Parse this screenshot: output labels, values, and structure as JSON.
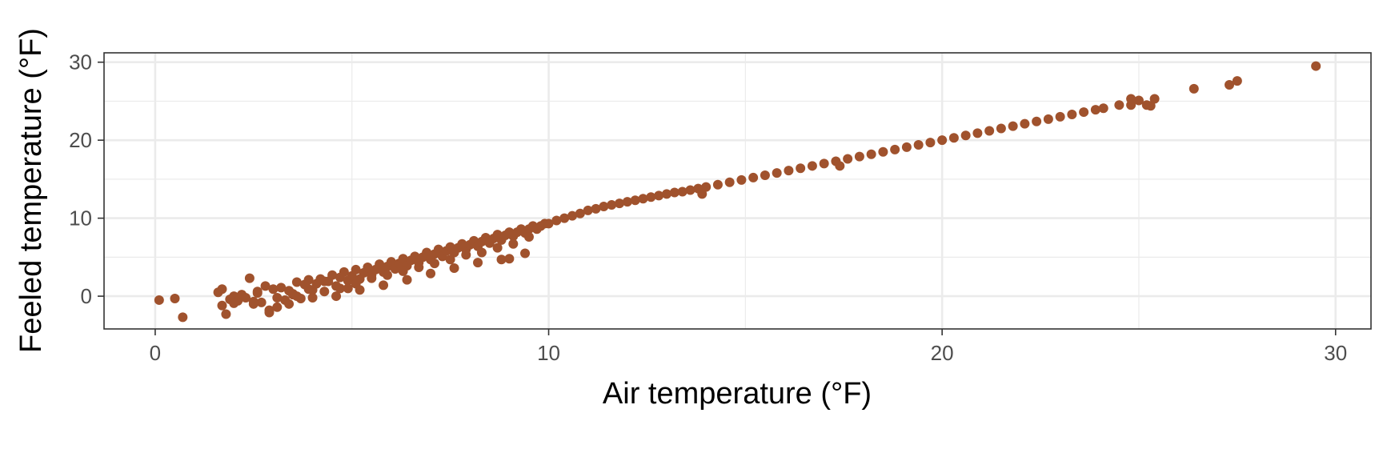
{
  "chart_data": {
    "type": "scatter",
    "title": "",
    "xlabel": "Air temperature (°F)",
    "ylabel": "Feeled temperature (°F)",
    "xlim": [
      -1.3,
      30.9
    ],
    "ylim": [
      -4.2,
      31.2
    ],
    "x_ticks": [
      0,
      10,
      20,
      30
    ],
    "y_ticks": [
      0,
      10,
      20,
      30
    ],
    "x_tick_labels": [
      "0",
      "10",
      "20",
      "30"
    ],
    "y_tick_labels": [
      "0",
      "10",
      "20",
      "30"
    ],
    "grid": true,
    "legend": "none",
    "point_color": "#A0522D",
    "series": [
      {
        "x": [
          0.1,
          0.5,
          0.7,
          1.6,
          1.7,
          1.8,
          1.9,
          2.0,
          2.1,
          2.2,
          2.4,
          2.5,
          2.6,
          2.7,
          2.8,
          2.9,
          3.0,
          3.1,
          3.2,
          3.3,
          3.4,
          3.5,
          3.6,
          3.7,
          3.8,
          3.9,
          4.0,
          4.1,
          4.2,
          4.3,
          4.4,
          4.5,
          4.6,
          4.7,
          4.8,
          4.9,
          5.0,
          5.1,
          5.2,
          5.3,
          5.4,
          5.5,
          5.6,
          5.7,
          5.8,
          5.9,
          6.0,
          6.1,
          6.2,
          6.3,
          6.4,
          6.5,
          6.6,
          6.7,
          6.8,
          6.9,
          7.0,
          7.1,
          7.2,
          7.3,
          7.4,
          7.5,
          7.6,
          7.7,
          7.8,
          7.9,
          8.0,
          8.1,
          8.2,
          8.3,
          8.4,
          8.5,
          8.6,
          8.7,
          8.8,
          8.9,
          9.0,
          9.1,
          9.2,
          9.3,
          9.4,
          9.5,
          9.6,
          9.7,
          9.8,
          9.9,
          10.0,
          10.2,
          10.4,
          10.6,
          10.8,
          11.0,
          11.2,
          11.4,
          11.6,
          11.8,
          12.0,
          12.2,
          12.4,
          12.6,
          12.8,
          13.0,
          13.2,
          13.4,
          13.6,
          13.8,
          14.0,
          14.3,
          14.6,
          14.9,
          15.2,
          15.5,
          15.8,
          16.1,
          16.4,
          16.7,
          17.0,
          17.3,
          17.6,
          17.9,
          18.2,
          18.5,
          18.8,
          19.1,
          19.4,
          19.7,
          20.0,
          20.3,
          20.6,
          20.9,
          21.2,
          21.5,
          21.8,
          22.1,
          22.4,
          22.7,
          23.0,
          23.3,
          23.6,
          23.9,
          24.1,
          24.5,
          24.8,
          25.0,
          25.2,
          25.4,
          26.4,
          27.3,
          27.5,
          29.5,
          2.0,
          2.3,
          2.6,
          3.1,
          3.5,
          3.9,
          4.3,
          4.7,
          5.1,
          5.5,
          5.9,
          6.3,
          6.7,
          7.1,
          7.5,
          7.9,
          8.3,
          8.7,
          9.1,
          9.5,
          2.9,
          3.4,
          4.0,
          4.6,
          5.2,
          5.8,
          6.4,
          7.0,
          7.6,
          8.2,
          8.8,
          9.4,
          13.9,
          17.4,
          24.8,
          25.3,
          9.0,
          1.7,
          3.6,
          2.5,
          4.9
        ],
        "y": [
          -0.5,
          -0.3,
          -2.7,
          0.5,
          -1.2,
          -2.3,
          -0.4,
          0.0,
          -0.6,
          0.2,
          2.3,
          -1.0,
          0.4,
          -0.8,
          1.3,
          -1.8,
          0.9,
          -0.2,
          1.1,
          -0.5,
          0.7,
          0.2,
          1.8,
          -0.3,
          1.5,
          2.1,
          0.8,
          1.6,
          2.2,
          0.6,
          1.9,
          2.7,
          1.3,
          2.4,
          3.1,
          2.0,
          2.6,
          3.4,
          2.2,
          3.0,
          3.7,
          2.7,
          3.4,
          4.1,
          3.1,
          3.8,
          4.4,
          3.5,
          4.2,
          4.8,
          3.9,
          4.6,
          5.1,
          4.3,
          5.0,
          5.6,
          4.7,
          5.4,
          6.0,
          5.1,
          5.8,
          6.3,
          5.6,
          6.2,
          6.7,
          6.0,
          6.6,
          7.1,
          6.4,
          7.0,
          7.5,
          6.8,
          7.4,
          7.9,
          7.2,
          7.8,
          8.2,
          7.7,
          8.2,
          8.6,
          8.1,
          8.6,
          9.0,
          8.6,
          9.0,
          9.3,
          9.3,
          9.7,
          10.0,
          10.3,
          10.6,
          11.0,
          11.2,
          11.5,
          11.7,
          11.9,
          12.1,
          12.3,
          12.5,
          12.7,
          12.9,
          13.1,
          13.3,
          13.4,
          13.6,
          13.8,
          14.0,
          14.3,
          14.6,
          14.9,
          15.2,
          15.5,
          15.8,
          16.1,
          16.4,
          16.7,
          17.0,
          17.3,
          17.6,
          17.9,
          18.2,
          18.5,
          18.8,
          19.1,
          19.4,
          19.7,
          20.0,
          20.3,
          20.6,
          20.9,
          21.2,
          21.5,
          21.8,
          22.1,
          22.4,
          22.7,
          23.0,
          23.3,
          23.6,
          23.9,
          24.1,
          24.5,
          24.5,
          25.1,
          24.5,
          25.3,
          26.6,
          27.1,
          27.6,
          29.5,
          -0.9,
          -0.2,
          0.6,
          -1.4,
          0.3,
          0.9,
          1.9,
          1.0,
          1.6,
          2.3,
          2.7,
          3.2,
          3.7,
          4.2,
          4.7,
          5.3,
          5.6,
          6.2,
          6.7,
          7.6,
          -2.1,
          -1.0,
          -0.2,
          0.0,
          0.8,
          1.4,
          2.1,
          2.9,
          3.6,
          4.3,
          4.7,
          5.5,
          13.1,
          16.7,
          25.3,
          24.4,
          4.8,
          0.9,
          0.0,
          -0.7,
          1.0
        ]
      }
    ]
  }
}
